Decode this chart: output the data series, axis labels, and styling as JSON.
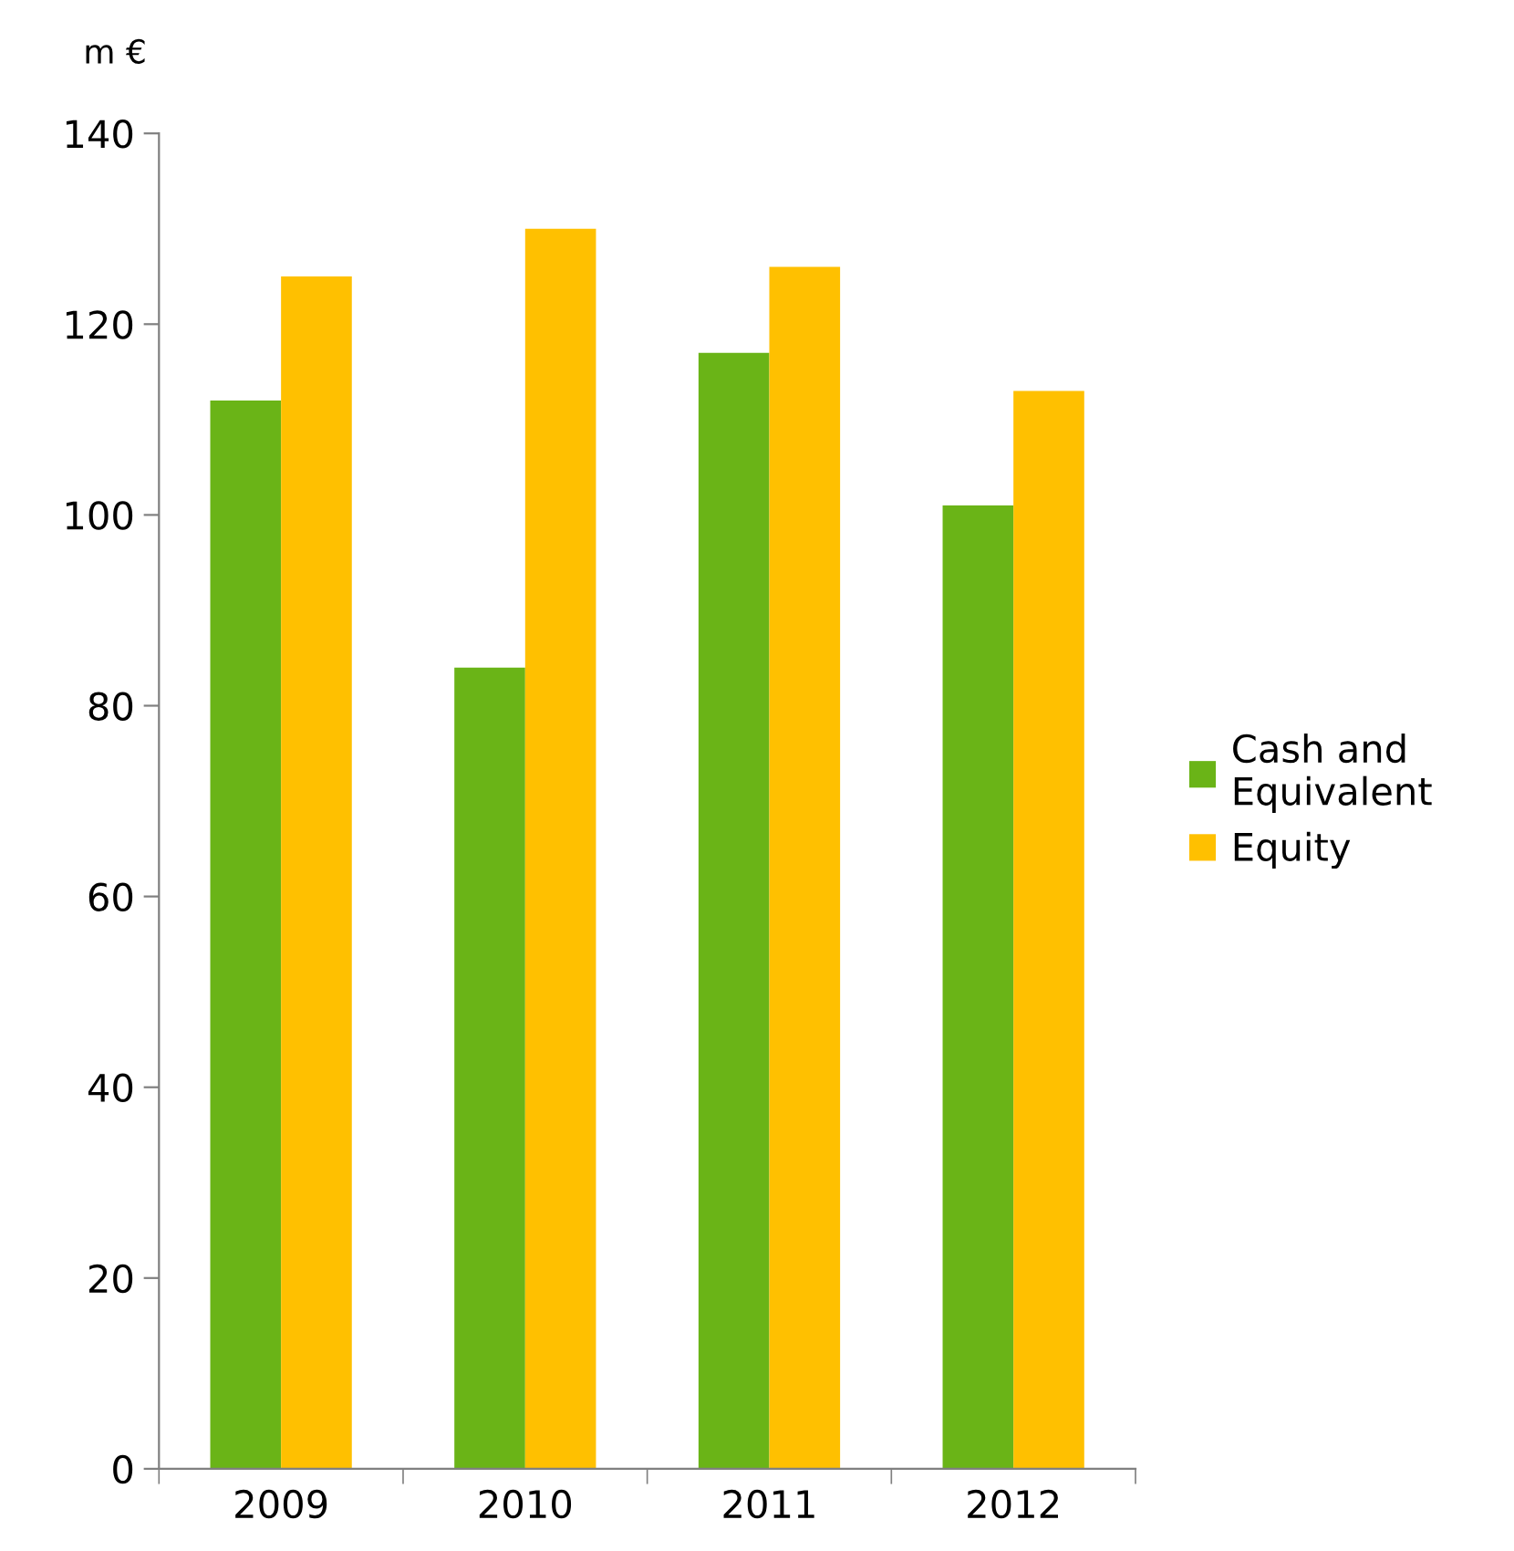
{
  "chart_data": {
    "type": "bar",
    "ylabel": "m €",
    "categories": [
      "2009",
      "2010",
      "2011",
      "2012"
    ],
    "series": [
      {
        "name": "Cash and\nEquivalent",
        "color": "#6ab417",
        "values": [
          112,
          84,
          117,
          101
        ]
      },
      {
        "name": "Equity",
        "color": "#ffc000",
        "values": [
          125,
          130,
          126,
          113
        ]
      }
    ],
    "ylim": [
      0,
      140
    ],
    "yticks": [
      0,
      20,
      40,
      60,
      80,
      100,
      120,
      140
    ],
    "grid": false,
    "legend": "right"
  }
}
